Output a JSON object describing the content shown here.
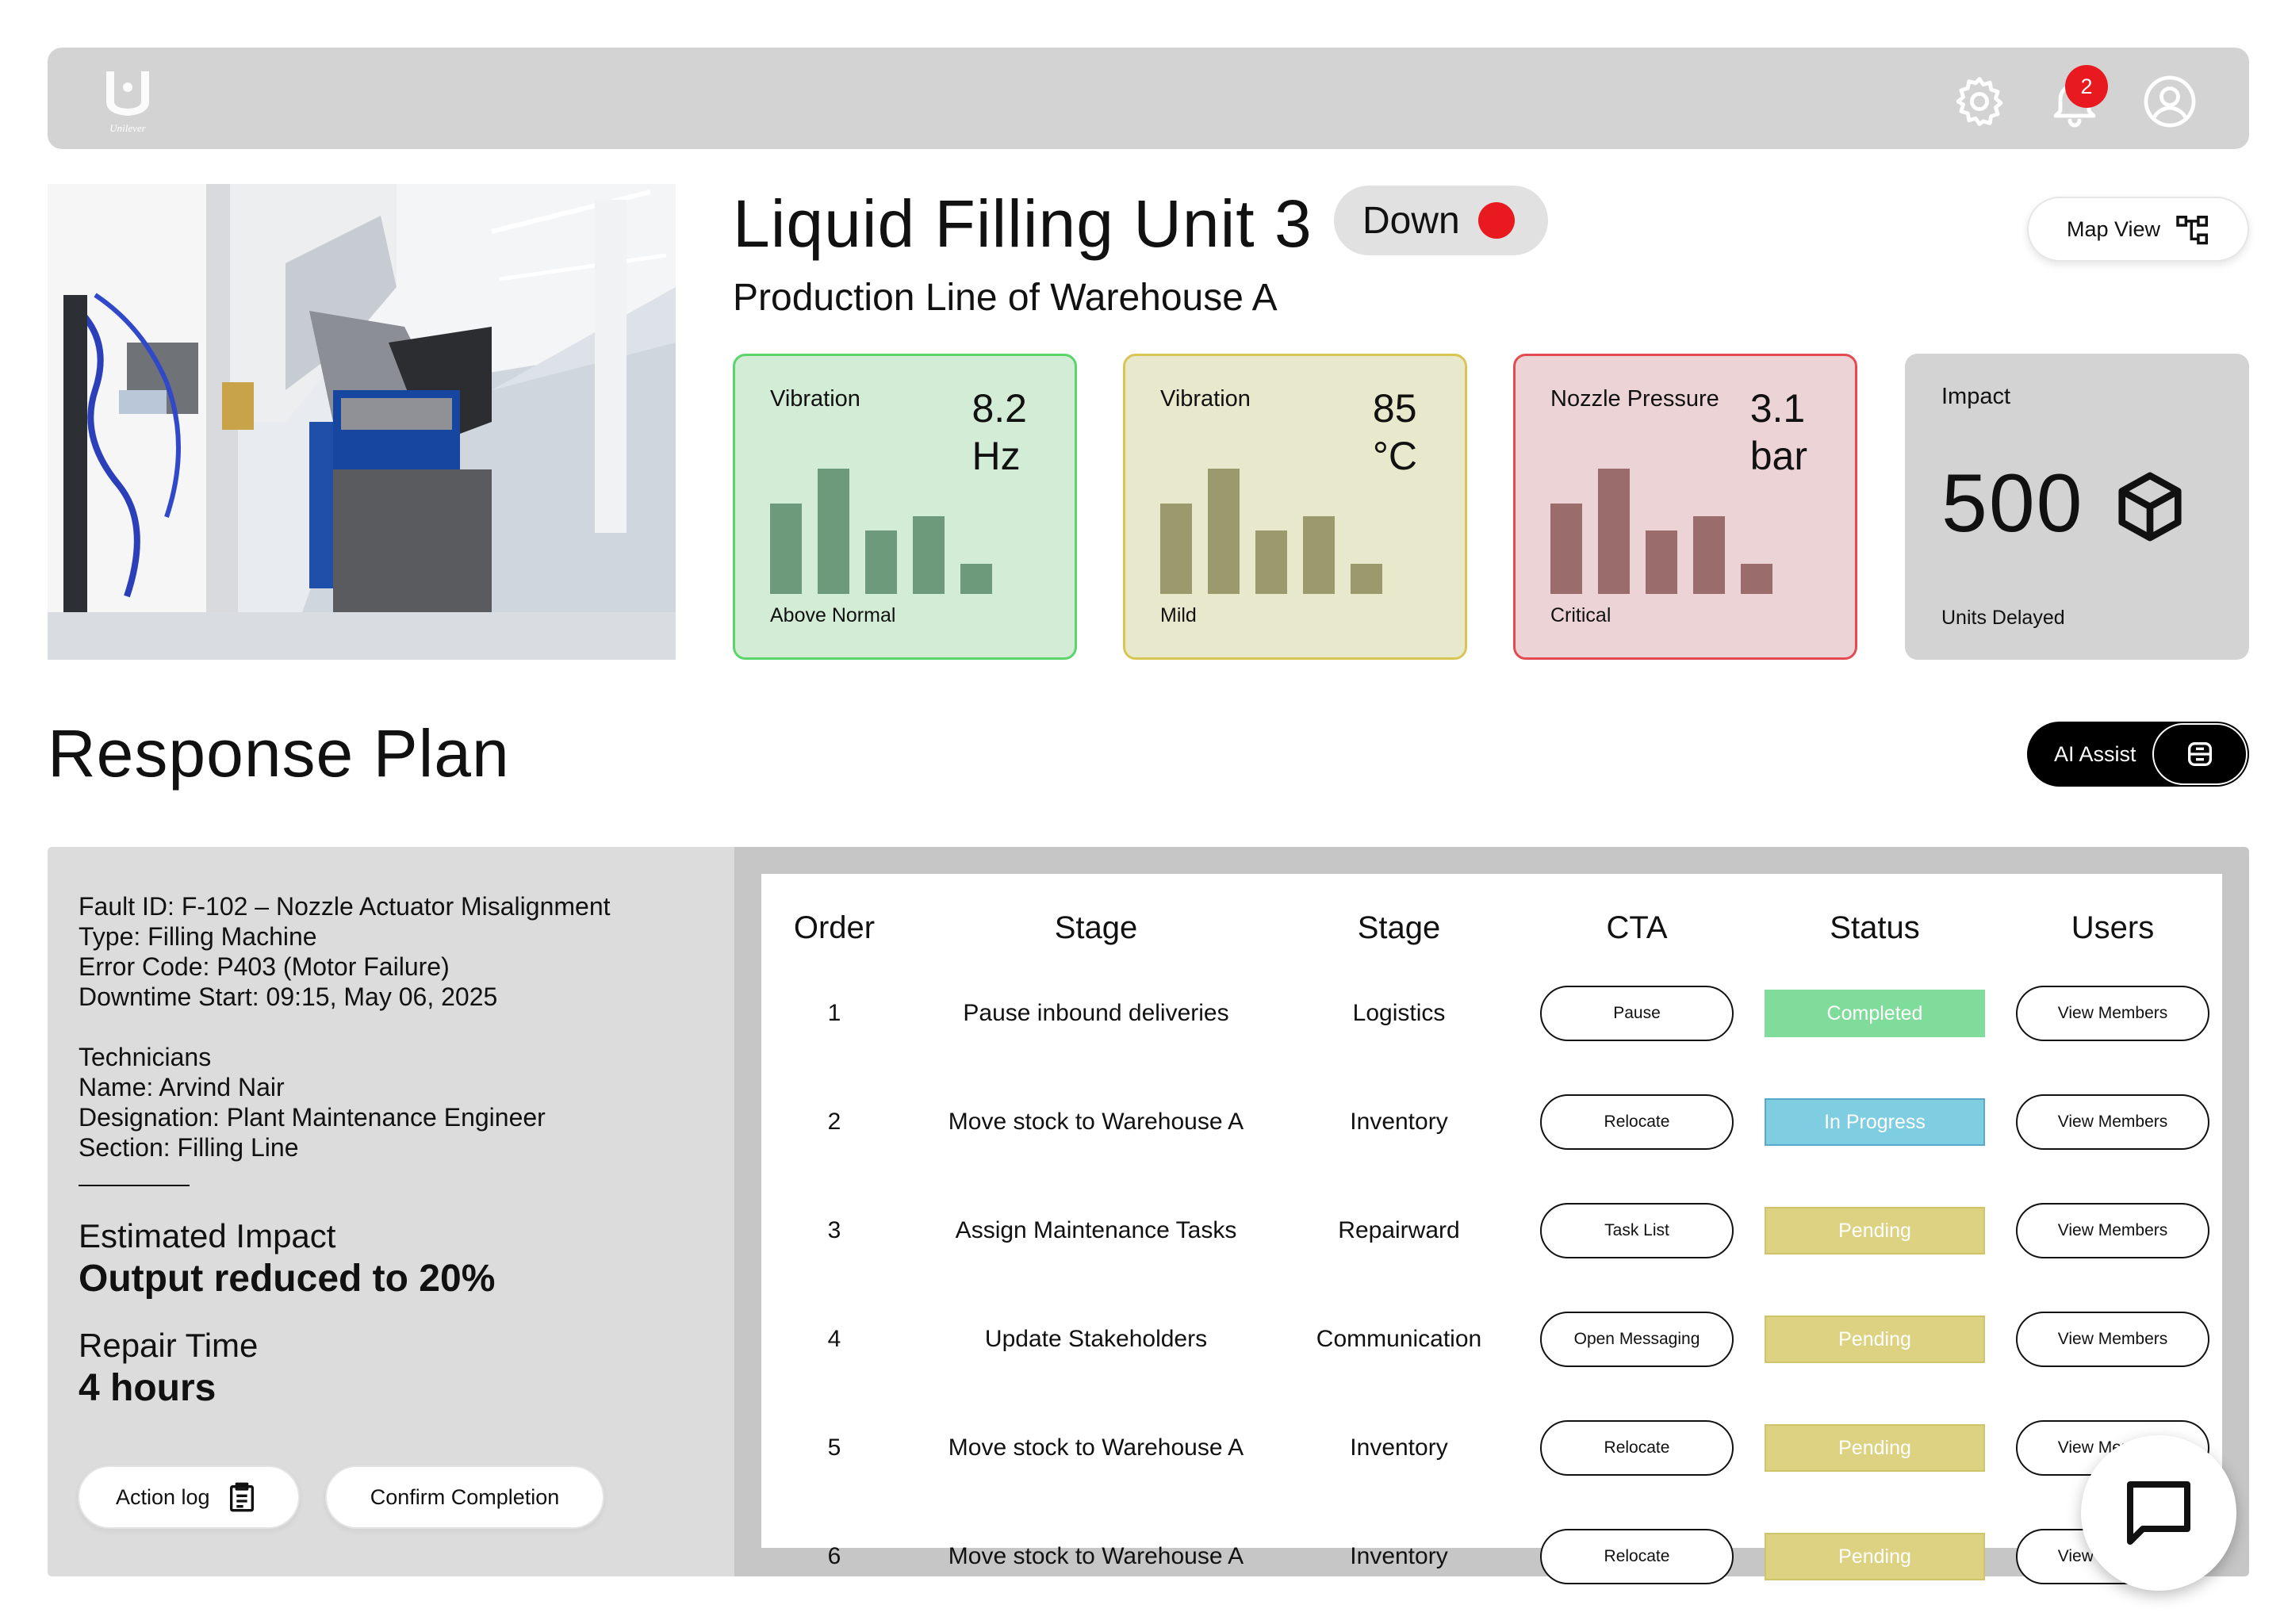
{
  "header": {
    "brand_name": "Unilever",
    "icons": [
      "settings-icon",
      "bell-icon",
      "user-icon"
    ],
    "notification_count": "2"
  },
  "unit": {
    "title": "Liquid Filling Unit 3",
    "status": "Down",
    "status_color": "#e8191f",
    "subtitle": "Production Line of Warehouse A",
    "map_view_label": "Map View"
  },
  "metrics": [
    {
      "label": "Vibration",
      "value_line1": "8.2",
      "value_line2": "Hz",
      "caption": "Above Normal",
      "bar_levels": [
        0.57,
        0.79,
        0.4,
        0.49,
        0.19
      ],
      "bg": "#d3ecd5",
      "border": "#5ad46b",
      "bar_color": "#6c9a7a"
    },
    {
      "label": "Vibration",
      "value_line1": "85",
      "value_line2": "°C",
      "caption": "Mild",
      "bar_levels": [
        0.57,
        0.79,
        0.4,
        0.49,
        0.19
      ],
      "bg": "#e8e9cc",
      "border": "#d9c553",
      "bar_color": "#9a9a6c"
    },
    {
      "label": "Nozzle Pressure",
      "value_line1": "3.1",
      "value_line2": "bar",
      "caption": "Critical",
      "bar_levels": [
        0.57,
        0.79,
        0.4,
        0.49,
        0.19
      ],
      "bg": "#ecd3d6",
      "border": "#e34a52",
      "bar_color": "#9a6c6c"
    }
  ],
  "impact": {
    "label": "Impact",
    "value": "500",
    "caption": "Units Delayed"
  },
  "response_plan": {
    "title": "Response Plan",
    "ai_assist_label": "AI Assist"
  },
  "fault": {
    "lines": [
      "Fault ID: F-102 – Nozzle Actuator Misalignment",
      "Type: Filling Machine",
      "Error Code: P403 (Motor Failure)",
      "Downtime Start: 09:15, May 06, 2025"
    ],
    "technician_lines": [
      "Technicians",
      "Name: Arvind Nair",
      "Designation: Plant Maintenance Engineer",
      "Section: Filling Line"
    ],
    "estimated_impact_label": "Estimated Impact",
    "estimated_impact_value": "Output reduced to 20%",
    "repair_time_label": "Repair Time",
    "repair_time_value": "4 hours",
    "action_log_label": "Action log",
    "confirm_label": "Confirm Completion"
  },
  "table": {
    "headers": [
      "Order",
      "Stage",
      "Stage",
      "CTA",
      "Status",
      "Users"
    ],
    "rows": [
      {
        "order": "1",
        "stage": "Pause inbound deliveries",
        "team": "Logistics",
        "cta": "Pause",
        "status": "Completed",
        "users": "View Members"
      },
      {
        "order": "2",
        "stage": "Move stock to Warehouse A",
        "team": "Inventory",
        "cta": "Relocate",
        "status": "In Progress",
        "users": "View Members"
      },
      {
        "order": "3",
        "stage": "Assign Maintenance Tasks",
        "team": "Repairward",
        "cta": "Task List",
        "status": "Pending",
        "users": "View Members"
      },
      {
        "order": "4",
        "stage": "Update Stakeholders",
        "team": "Communication",
        "cta": "Open Messaging",
        "status": "Pending",
        "users": "View Members"
      },
      {
        "order": "5",
        "stage": "Move stock to Warehouse A",
        "team": "Inventory",
        "cta": "Relocate",
        "status": "Pending",
        "users": "View Members"
      },
      {
        "order": "6",
        "stage": "Move stock to Warehouse A",
        "team": "Inventory",
        "cta": "Relocate",
        "status": "Pending",
        "users": "View Members"
      }
    ],
    "status_colors": {
      "Completed": {
        "bg": "#7fdc9a",
        "border": "#7fdc9a"
      },
      "In Progress": {
        "bg": "#7fcde0",
        "border": "#5aa8c9"
      },
      "Pending": {
        "bg": "#ddd281",
        "border": "#d0c46a"
      }
    }
  },
  "chat": {
    "icon": "chat-icon"
  }
}
